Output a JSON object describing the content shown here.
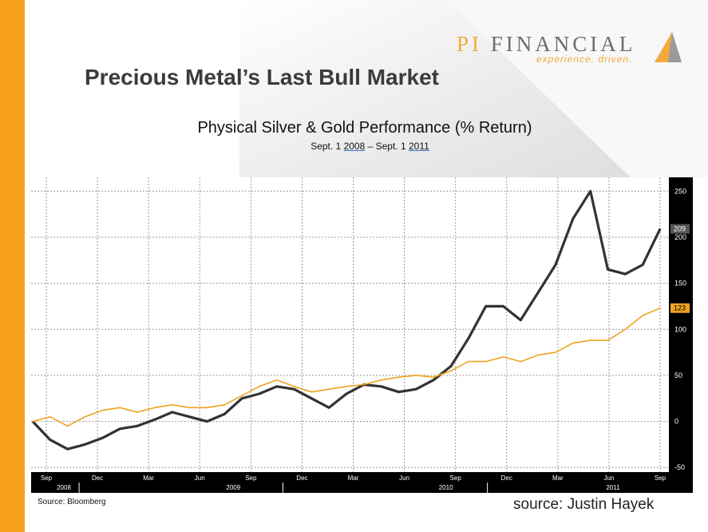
{
  "slide": {
    "title": "Precious Metal’s Last Bull Market",
    "source_left": "Source: Bloomberg",
    "source_right": "source: Justin Hayek"
  },
  "logo": {
    "brand_prefix": "PI",
    "brand_rest": "FINANCIAL",
    "tagline": "experience. driven."
  },
  "colors": {
    "accent_orange": "#f7a01b",
    "silver_line": "#333333",
    "gold_line": "#f0a21c",
    "axis_bg": "#000000"
  },
  "chart_data": {
    "type": "line",
    "title": "Physical Silver & Gold Performance (% Return)",
    "subtitle": {
      "pre": "Sept. 1 ",
      "y1": "2008",
      "mid": " – Sept. 1 ",
      "y2": "2011"
    },
    "x_ticks": [
      "Sep",
      "Dec",
      "Mar",
      "Jun",
      "Sep",
      "Dec",
      "Mar",
      "Jun",
      "Sep",
      "Dec",
      "Mar",
      "Jun",
      "Sep"
    ],
    "x_years": [
      "2008",
      "2009",
      "2010",
      "2011"
    ],
    "y_ticks": [
      "250",
      "200",
      "150",
      "100",
      "50",
      "0",
      "-50"
    ],
    "ylim": [
      -55,
      265
    ],
    "grid": true,
    "x": [
      "2008-09",
      "2008-10",
      "2008-11",
      "2008-12",
      "2009-01",
      "2009-02",
      "2009-03",
      "2009-04",
      "2009-05",
      "2009-06",
      "2009-07",
      "2009-08",
      "2009-09",
      "2009-10",
      "2009-11",
      "2009-12",
      "2010-01",
      "2010-02",
      "2010-03",
      "2010-04",
      "2010-05",
      "2010-06",
      "2010-07",
      "2010-08",
      "2010-09",
      "2010-10",
      "2010-11",
      "2010-12",
      "2011-01",
      "2011-02",
      "2011-03",
      "2011-04",
      "2011-05",
      "2011-06",
      "2011-07",
      "2011-08",
      "2011-09"
    ],
    "series": [
      {
        "name": "Silver",
        "end_label": "209",
        "values": [
          0,
          -20,
          -30,
          -25,
          -18,
          -8,
          -5,
          2,
          10,
          5,
          0,
          8,
          25,
          30,
          38,
          35,
          25,
          15,
          30,
          40,
          38,
          32,
          35,
          45,
          60,
          90,
          125,
          125,
          110,
          140,
          170,
          220,
          250,
          165,
          160,
          170,
          209
        ]
      },
      {
        "name": "Gold",
        "end_label": "123",
        "values": [
          0,
          5,
          -5,
          5,
          12,
          15,
          10,
          15,
          18,
          15,
          15,
          18,
          28,
          38,
          45,
          38,
          32,
          35,
          38,
          40,
          45,
          48,
          50,
          48,
          55,
          65,
          65,
          70,
          65,
          72,
          75,
          85,
          88,
          88,
          100,
          115,
          123
        ]
      }
    ]
  }
}
